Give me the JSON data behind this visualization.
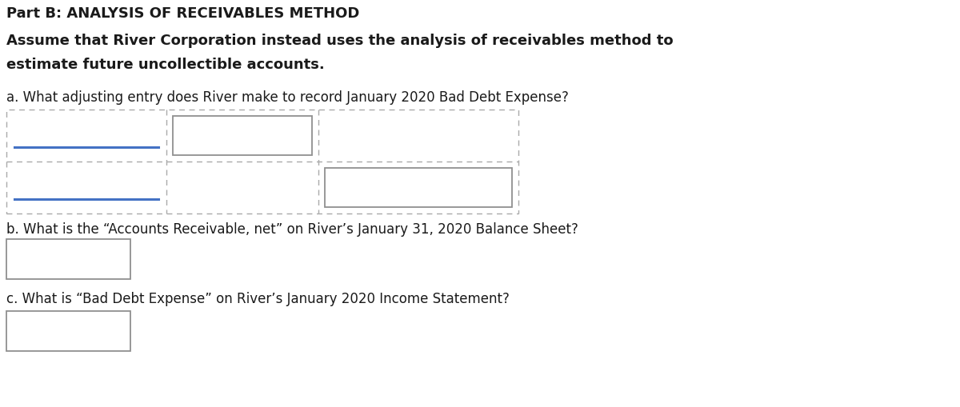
{
  "background_color": "#ffffff",
  "title_line1": "Part B: ANALYSIS OF RECEIVABLES METHOD",
  "body_line1": "Assume that River Corporation instead uses the analysis of receivables method to",
  "body_line2": "estimate future uncollectible accounts.",
  "question_a": "a. What adjusting entry does River make to record January 2020 Bad Debt Expense?",
  "question_b": "b. What is the “Accounts Receivable, net” on River’s January 31, 2020 Balance Sheet?",
  "question_c": "c. What is “Bad Debt Expense” on River’s January 2020 Income Statement?",
  "text_color": "#1a1a1a",
  "box_edge_color": "#909090",
  "dashed_border_color": "#aaaaaa",
  "blue_line_color": "#4472c4",
  "fig_width": 12.0,
  "fig_height": 5.1,
  "dpi": 100
}
